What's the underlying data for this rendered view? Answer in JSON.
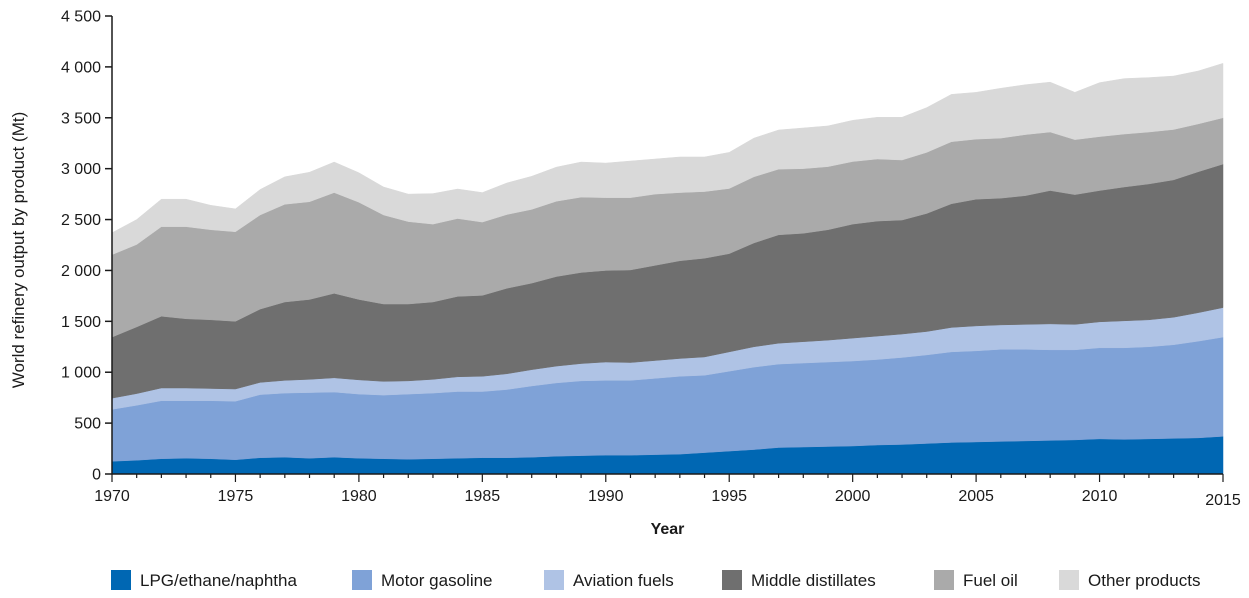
{
  "chart_data": {
    "type": "area",
    "stacked": true,
    "title": "",
    "xlabel": "Year",
    "ylabel": "World refinery output by product (Mt)",
    "xlim": [
      1970,
      2015
    ],
    "ylim": [
      0,
      4500
    ],
    "x_ticks": [
      "1970",
      "1975",
      "1980",
      "1985",
      "1990",
      "1995",
      "2000",
      "2005",
      "2010",
      "2015"
    ],
    "y_ticks": [
      {
        "value": 0,
        "label": "0"
      },
      {
        "value": 500,
        "label": "500"
      },
      {
        "value": 1000,
        "label": "1 000"
      },
      {
        "value": 1500,
        "label": "1 500"
      },
      {
        "value": 2000,
        "label": "2 000"
      },
      {
        "value": 2500,
        "label": "2 500"
      },
      {
        "value": 3000,
        "label": "3 000"
      },
      {
        "value": 3500,
        "label": "3 500"
      },
      {
        "value": 4000,
        "label": "4 000"
      },
      {
        "value": 4500,
        "label": "4 500"
      }
    ],
    "grid": false,
    "legend_position": "bottom",
    "x": [
      1970,
      1971,
      1972,
      1973,
      1974,
      1975,
      1976,
      1977,
      1978,
      1979,
      1980,
      1981,
      1982,
      1983,
      1984,
      1985,
      1986,
      1987,
      1988,
      1989,
      1990,
      1991,
      1992,
      1993,
      1994,
      1995,
      1996,
      1997,
      1998,
      1999,
      2000,
      2001,
      2002,
      2003,
      2004,
      2005,
      2006,
      2007,
      2008,
      2009,
      2010,
      2011,
      2012,
      2013,
      2014,
      2015
    ],
    "series": [
      {
        "name": "LPG/ethane/naphtha",
        "color": "#0067b3",
        "values": [
          125,
          135,
          150,
          155,
          150,
          140,
          160,
          165,
          155,
          165,
          155,
          150,
          145,
          150,
          155,
          160,
          160,
          165,
          175,
          180,
          185,
          185,
          190,
          195,
          210,
          225,
          240,
          260,
          265,
          270,
          275,
          285,
          290,
          300,
          310,
          315,
          320,
          325,
          330,
          335,
          345,
          340,
          345,
          350,
          355,
          370
        ]
      },
      {
        "name": "Motor gasoline",
        "color": "#7fa2d7",
        "values": [
          510,
          540,
          570,
          565,
          570,
          575,
          620,
          630,
          645,
          640,
          630,
          625,
          640,
          645,
          655,
          650,
          670,
          700,
          720,
          735,
          735,
          735,
          750,
          765,
          760,
          785,
          810,
          820,
          825,
          830,
          835,
          840,
          855,
          870,
          890,
          895,
          905,
          900,
          890,
          885,
          895,
          900,
          905,
          920,
          950,
          975
        ]
      },
      {
        "name": "Aviation fuels",
        "color": "#afc3e5",
        "values": [
          110,
          115,
          125,
          125,
          120,
          120,
          120,
          125,
          130,
          140,
          140,
          135,
          130,
          135,
          145,
          150,
          155,
          160,
          165,
          170,
          180,
          175,
          175,
          175,
          180,
          190,
          200,
          205,
          210,
          215,
          225,
          230,
          230,
          230,
          240,
          245,
          240,
          245,
          255,
          250,
          255,
          265,
          265,
          270,
          280,
          290
        ]
      },
      {
        "name": "Middle distillates",
        "color": "#6f6f6f",
        "values": [
          600,
          655,
          705,
          680,
          675,
          665,
          720,
          770,
          785,
          830,
          790,
          760,
          755,
          760,
          790,
          795,
          840,
          850,
          880,
          895,
          900,
          910,
          935,
          960,
          970,
          965,
          1020,
          1065,
          1065,
          1085,
          1120,
          1130,
          1120,
          1160,
          1215,
          1245,
          1245,
          1265,
          1310,
          1275,
          1290,
          1315,
          1335,
          1350,
          1385,
          1410
        ]
      },
      {
        "name": "Fuel oil",
        "color": "#aaaaaa",
        "values": [
          810,
          810,
          880,
          905,
          885,
          880,
          925,
          960,
          960,
          990,
          955,
          875,
          810,
          765,
          765,
          720,
          725,
          725,
          740,
          740,
          715,
          710,
          700,
          670,
          655,
          640,
          650,
          645,
          635,
          620,
          615,
          610,
          590,
          600,
          610,
          590,
          590,
          600,
          575,
          540,
          530,
          520,
          510,
          495,
          470,
          455
        ]
      },
      {
        "name": "Other products",
        "color": "#d9d9d9",
        "values": [
          215,
          245,
          270,
          270,
          240,
          225,
          250,
          270,
          290,
          300,
          290,
          275,
          270,
          300,
          290,
          290,
          310,
          325,
          335,
          345,
          340,
          360,
          345,
          350,
          340,
          355,
          380,
          385,
          400,
          400,
          405,
          410,
          420,
          440,
          465,
          460,
          490,
          490,
          490,
          465,
          530,
          545,
          535,
          525,
          520,
          535
        ]
      }
    ]
  }
}
